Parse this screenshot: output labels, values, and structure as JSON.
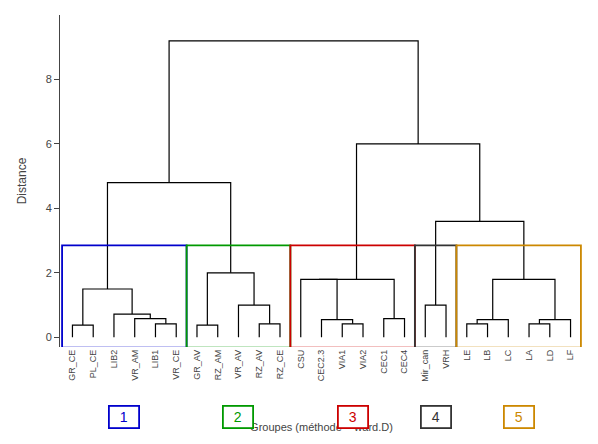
{
  "chart_data": {
    "type": "dendrogram",
    "categories": [
      "GR_CE",
      "PL_CE",
      "LIB2",
      "VR_AM",
      "LIB1",
      "VR_CE",
      "GR_AV",
      "RZ_AM",
      "VR_AV",
      "RZ_AV",
      "RZ_CE",
      "CSU",
      "CEC2.3",
      "VIA1",
      "VIA2",
      "CEC1",
      "CEC4",
      "Mir_can",
      "VRH",
      "LE",
      "LB",
      "LC",
      "LA",
      "LD",
      "LF"
    ],
    "tree": {
      "height": 9.2,
      "children": [
        {
          "height": 4.8,
          "children": [
            {
              "height": 1.5,
              "children": [
                {
                  "height": 0.38,
                  "children": [
                    "GR_CE",
                    "PL_CE"
                  ]
                },
                {
                  "height": 0.72,
                  "children": [
                    "LIB2",
                    {
                      "height": 0.58,
                      "children": [
                        "VR_AM",
                        {
                          "height": 0.42,
                          "children": [
                            "LIB1",
                            "VR_CE"
                          ]
                        }
                      ]
                    }
                  ]
                }
              ]
            },
            {
              "height": 2.0,
              "children": [
                {
                  "height": 0.38,
                  "children": [
                    "GR_AV",
                    "RZ_AM"
                  ]
                },
                {
                  "height": 1.0,
                  "children": [
                    "VR_AV",
                    {
                      "height": 0.42,
                      "children": [
                        "RZ_AV",
                        "RZ_CE"
                      ]
                    }
                  ]
                }
              ]
            }
          ]
        },
        {
          "height": 6.0,
          "children": [
            {
              "height": 1.8,
              "children": [
                {
                  "height": 1.8,
                  "children": [
                    "CSU",
                    {
                      "height": 0.55,
                      "children": [
                        "CEC2.3",
                        {
                          "height": 0.42,
                          "children": [
                            "VIA1",
                            "VIA2"
                          ]
                        }
                      ]
                    }
                  ]
                },
                {
                  "height": 0.58,
                  "children": [
                    "CEC1",
                    "CEC4"
                  ]
                }
              ]
            },
            {
              "height": 3.6,
              "children": [
                {
                  "height": 1.0,
                  "children": [
                    "Mir_can",
                    "VRH"
                  ]
                },
                {
                  "height": 1.8,
                  "children": [
                    {
                      "height": 0.55,
                      "children": [
                        {
                          "height": 0.42,
                          "children": [
                            "LE",
                            "LB"
                          ]
                        },
                        "LC"
                      ]
                    },
                    {
                      "height": 0.55,
                      "children": [
                        {
                          "height": 0.42,
                          "children": [
                            "LA",
                            "LD"
                          ]
                        },
                        "LF"
                      ]
                    }
                  ]
                }
              ]
            }
          ]
        }
      ]
    },
    "color": "#000000",
    "ylabel": "Distance",
    "xlabel": "Groupes (méthode = ward.D)",
    "ylim": [
      -0.3,
      10.0
    ],
    "yticks": [
      0,
      2,
      4,
      6,
      8
    ],
    "grid": false,
    "box_ylim": [
      -0.32,
      2.85
    ],
    "groups": [
      {
        "name": "1",
        "color": "#0000CC",
        "categories": [
          "GR_CE",
          "PL_CE",
          "LIB2",
          "VR_AM",
          "LIB1",
          "VR_CE"
        ]
      },
      {
        "name": "2",
        "color": "#009900",
        "categories": [
          "GR_AV",
          "RZ_AM",
          "VR_AV",
          "RZ_AV",
          "RZ_CE"
        ]
      },
      {
        "name": "3",
        "color": "#CC0000",
        "categories": [
          "CSU",
          "CEC2.3",
          "VIA1",
          "VIA2",
          "CEC1",
          "CEC4"
        ]
      },
      {
        "name": "4",
        "color": "#333333",
        "categories": [
          "Mir_can",
          "VRH"
        ]
      },
      {
        "name": "5",
        "color": "#CC8800",
        "categories": [
          "LE",
          "LB",
          "LC",
          "LA",
          "LD",
          "LF"
        ]
      }
    ]
  }
}
